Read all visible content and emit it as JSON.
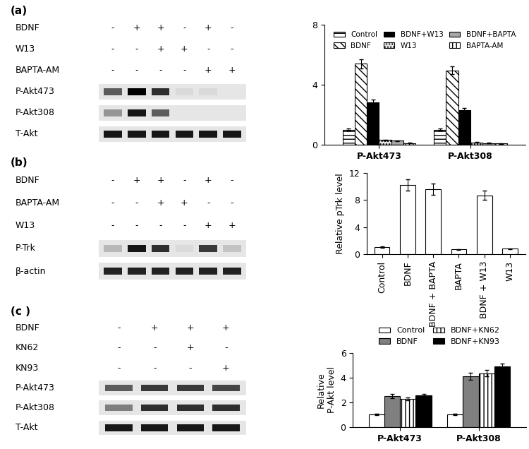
{
  "chart_data": [
    {
      "type": "bar",
      "categories": [
        "P-Akt473",
        "P-Akt308"
      ],
      "series": [
        {
          "name": "Control",
          "color": "#ffffff",
          "values": [
            1.0,
            1.0
          ],
          "errors": [
            0.08,
            0.08
          ]
        },
        {
          "name": "BDNF",
          "color": "#ffffff",
          "values": [
            5.4,
            4.95
          ],
          "errors": [
            0.3,
            0.25
          ]
        },
        {
          "name": "BDNF+W13",
          "color": "#000000",
          "values": [
            2.8,
            2.3
          ],
          "errors": [
            0.2,
            0.15
          ]
        },
        {
          "name": "W13",
          "color": "#e8e8e8",
          "values": [
            0.3,
            0.15
          ],
          "errors": [
            0.03,
            0.03
          ]
        },
        {
          "name": "BDNF+BAPTA",
          "color": "#a6a6a6",
          "values": [
            0.25,
            0.1
          ],
          "errors": [
            0.03,
            0.02
          ]
        },
        {
          "name": "BAPTA-AM",
          "color": "#ffffff",
          "values": [
            0.1,
            0.08
          ],
          "errors": [
            0.02,
            0.02
          ]
        }
      ],
      "ylim": [
        0,
        8
      ],
      "yticks": [
        0,
        4,
        8
      ],
      "legend": "upper center"
    },
    {
      "type": "bar",
      "categories": [
        "Control",
        "BDNF",
        "BDNF + BAPTA",
        "BAPTA",
        "BDNF + W13",
        "W13"
      ],
      "values": [
        1.0,
        10.2,
        9.6,
        0.7,
        8.7,
        0.8
      ],
      "errors": [
        0.1,
        0.8,
        0.8,
        0.05,
        0.7,
        0.05
      ],
      "color": "#ffffff",
      "y_label": "Relative pTrk level",
      "ylim": [
        0,
        12
      ],
      "yticks": [
        0,
        4,
        8,
        12
      ]
    },
    {
      "type": "bar",
      "categories": [
        "P-Akt473",
        "P-Akt308"
      ],
      "series": [
        {
          "name": "Control",
          "color": "#ffffff",
          "values": [
            1.0,
            1.0
          ],
          "errors": [
            0.05,
            0.05
          ]
        },
        {
          "name": "BDNF",
          "color": "#808080",
          "values": [
            2.5,
            4.1
          ],
          "errors": [
            0.15,
            0.3
          ]
        },
        {
          "name": "BDNF+KN62",
          "color": "#ffffff",
          "values": [
            2.3,
            4.35
          ],
          "errors": [
            0.12,
            0.25
          ]
        },
        {
          "name": "BDNF+KN93",
          "color": "#000000",
          "values": [
            2.55,
            4.9
          ],
          "errors": [
            0.12,
            0.25
          ]
        }
      ],
      "y_label": "Relative\nP-Akt level",
      "ylim": [
        0,
        6
      ],
      "yticks": [
        0,
        2,
        4,
        6
      ],
      "legend": "above"
    }
  ],
  "blots": [
    {
      "label": "(a)",
      "treatments": [
        {
          "name": "BDNF",
          "marks": [
            "-",
            "+",
            "+",
            "-",
            "+",
            "-"
          ]
        },
        {
          "name": "W13",
          "marks": [
            "-",
            "-",
            "+",
            "+",
            "-",
            "-"
          ]
        },
        {
          "name": "BAPTA-AM",
          "marks": [
            "-",
            "-",
            "-",
            "-",
            "+",
            "+"
          ]
        }
      ],
      "bands": [
        {
          "name": "P-Akt473",
          "intensity": [
            0.6,
            1.0,
            0.8,
            0.05,
            0.05,
            0.0
          ]
        },
        {
          "name": "P-Akt308",
          "intensity": [
            0.35,
            0.9,
            0.6,
            0.0,
            0.0,
            0.0
          ]
        },
        {
          "name": "T-Akt",
          "intensity": [
            0.9,
            0.9,
            0.9,
            0.9,
            0.9,
            0.9
          ]
        }
      ]
    },
    {
      "label": "(b)",
      "treatments": [
        {
          "name": "BDNF",
          "marks": [
            "-",
            "+",
            "+",
            "-",
            "+",
            "-"
          ]
        },
        {
          "name": "BAPTA-AM",
          "marks": [
            "-",
            "-",
            "+",
            "+",
            "-",
            "-"
          ]
        },
        {
          "name": "W13",
          "marks": [
            "-",
            "-",
            "-",
            "-",
            "+",
            "+"
          ]
        }
      ],
      "bands": [
        {
          "name": "P-Trk",
          "intensity": [
            0.2,
            0.9,
            0.8,
            0.05,
            0.75,
            0.15
          ]
        },
        {
          "name": "β-actin",
          "intensity": [
            0.85,
            0.85,
            0.85,
            0.85,
            0.85,
            0.85
          ]
        }
      ]
    },
    {
      "label": "(c )",
      "treatments": [
        {
          "name": "BDNF",
          "marks": [
            "-",
            "+",
            "+",
            "+"
          ]
        },
        {
          "name": "KN62",
          "marks": [
            "-",
            "-",
            "+",
            "-"
          ]
        },
        {
          "name": "KN93",
          "marks": [
            "-",
            "-",
            "-",
            "+"
          ]
        }
      ],
      "bands": [
        {
          "name": "P-Akt473",
          "intensity": [
            0.6,
            0.75,
            0.75,
            0.7
          ]
        },
        {
          "name": "P-Akt308",
          "intensity": [
            0.45,
            0.8,
            0.8,
            0.8
          ]
        },
        {
          "name": "T-Akt",
          "intensity": [
            0.9,
            0.9,
            0.9,
            0.9
          ]
        }
      ]
    }
  ]
}
